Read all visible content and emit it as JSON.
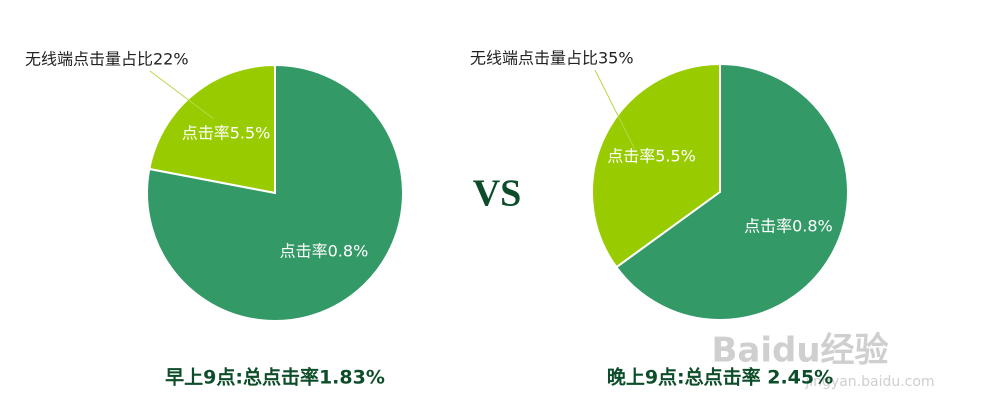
{
  "chart_data": [
    {
      "type": "pie",
      "title": "早上9点:总点击率1.83%",
      "annotation": "无线端点击量占比22%",
      "slices": [
        {
          "value": 22,
          "label": "点击率5.5%",
          "color": "#99cc00"
        },
        {
          "value": 78,
          "label": "点击率0.8%",
          "color": "#339966"
        }
      ]
    },
    {
      "type": "pie",
      "title": "晚上9点:总点击率 2.45%",
      "annotation": "无线端点击量占比35%",
      "slices": [
        {
          "value": 35,
          "label": "点击率5.5%",
          "color": "#99cc00"
        },
        {
          "value": 65,
          "label": "点击率0.8%",
          "color": "#339966"
        }
      ]
    }
  ],
  "separator": "VS",
  "watermark": {
    "brand": "Baidu经验",
    "url": "jingyan.baidu.com"
  }
}
